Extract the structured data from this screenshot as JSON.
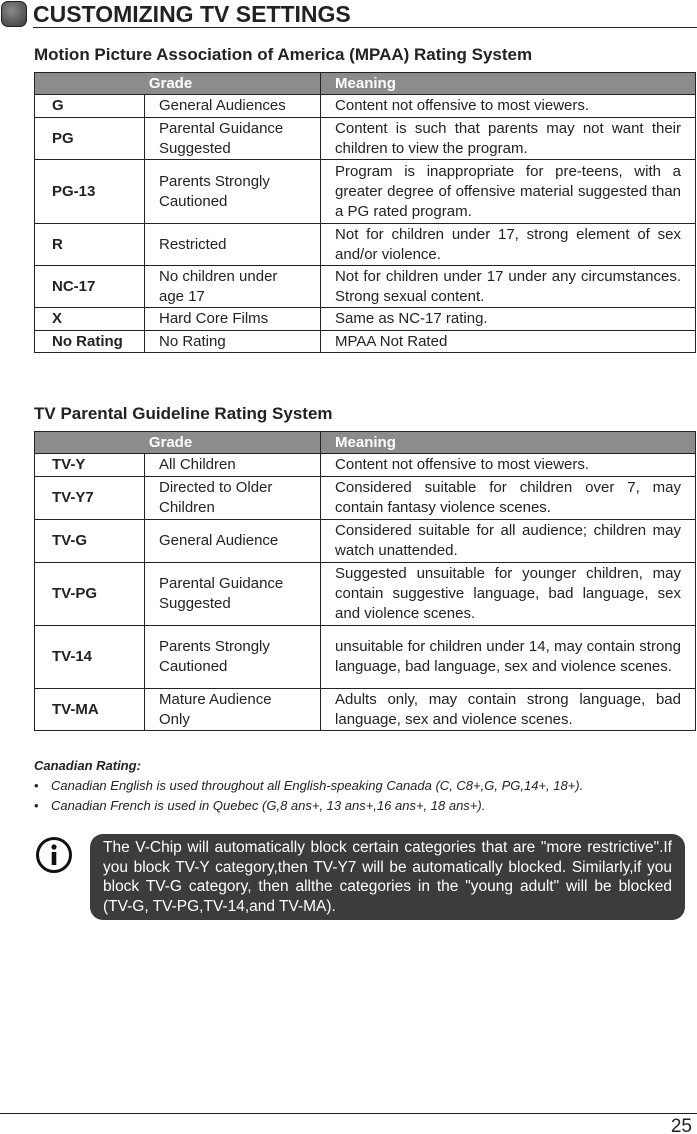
{
  "header": {
    "title": "CUSTOMIZING TV SETTINGS"
  },
  "mpaa": {
    "title": "Motion Picture Association of America (MPAA) Rating System",
    "columns": [
      "Grade",
      "Meaning"
    ],
    "rows": [
      [
        "G",
        "General Audiences",
        "Content not offensive to most viewers."
      ],
      [
        "PG",
        "Parental Guidance Suggested",
        "Content is such that parents may not want their children to view the program."
      ],
      [
        "PG-13",
        "Parents Strongly Cautioned",
        "Program is inappropriate for pre-teens, with a greater degree of offensive material suggested than a PG rated program."
      ],
      [
        "R",
        "Restricted",
        "Not for children under 17, strong element of sex and/or violence."
      ],
      [
        "NC-17",
        "No children under age 17",
        "Not for children under 17 under any circumstances. Strong sexual content."
      ],
      [
        "X",
        "Hard Core Films",
        "Same as NC-17 rating."
      ],
      [
        "No Rating",
        "No Rating",
        "MPAA Not Rated"
      ]
    ]
  },
  "tv": {
    "title": "TV Parental Guideline Rating System",
    "columns": [
      "Grade",
      "Meaning"
    ],
    "rows": [
      [
        "TV-Y",
        "All Children",
        "Content not offensive to most viewers."
      ],
      [
        "TV-Y7",
        "Directed to Older Children",
        "Considered suitable for children over 7, may contain fantasy violence scenes."
      ],
      [
        "TV-G",
        "General Audience",
        "Considered suitable for all audience; children may watch unattended."
      ],
      [
        "TV-PG",
        "Parental Guidance Suggested",
        "Suggested unsuitable for younger children, may contain suggestive language, bad language, sex and violence scenes."
      ],
      [
        "TV-14",
        "Parents Strongly Cautioned",
        "unsuitable for children under 14, may contain strong language, bad language, sex and violence scenes."
      ],
      [
        "TV-MA",
        "Mature Audience Only",
        "Adults only, may contain strong language, bad language, sex and violence scenes."
      ]
    ]
  },
  "canadian": {
    "title": "Canadian Rating:",
    "items": [
      "Canadian English is used throughout all English-speaking Canada (C, C8+,G, PG,14+, 18+).",
      "Canadian French is used in Quebec (G,8 ans+, 13 ans+,16 ans+, 18 ans+)."
    ]
  },
  "note": {
    "icon": "info-icon",
    "text": "The V-Chip will automatically block certain categories that are \"more restrictive\".If you block TV-Y category,then TV-Y7 will be automatically blocked. Similarly,if you block TV-G category, then allthe categories in the \"young adult\" will be blocked (TV-G, TV-PG,TV-14,and TV-MA)."
  },
  "footer": {
    "page_number": "25"
  }
}
